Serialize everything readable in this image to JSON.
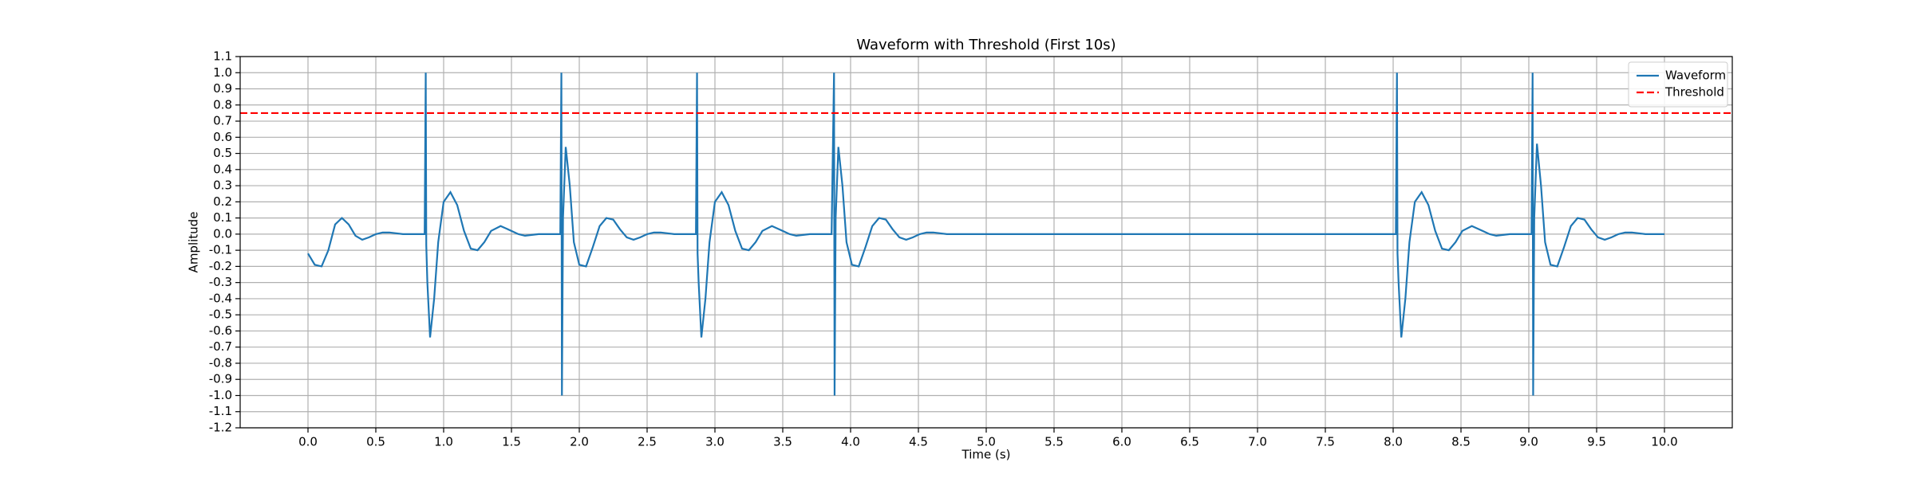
{
  "chart_data": {
    "type": "line",
    "title": "Waveform with Threshold (First 10s)",
    "x_label": "Time (s)",
    "y_label": "Amplitude",
    "xlim": [
      -0.5,
      10.5
    ],
    "ylim": [
      -1.2,
      1.1
    ],
    "grid": true,
    "legend": "upper right",
    "xticks": [
      {
        "value": 0,
        "label": "0.0"
      },
      0.5,
      {
        "value": 1,
        "label": "1.0"
      },
      1.5,
      {
        "value": 2,
        "label": "2.0"
      },
      2.5,
      {
        "value": 3,
        "label": "3.0"
      },
      3.5,
      {
        "value": 4,
        "label": "4.0"
      },
      4.5,
      {
        "value": 5,
        "label": "5.0"
      },
      5.5,
      {
        "value": 6,
        "label": "6.0"
      },
      6.5,
      {
        "value": 7,
        "label": "7.0"
      },
      7.5,
      {
        "value": 8,
        "label": "8.0"
      },
      8.5,
      {
        "value": 9,
        "label": "9.0"
      },
      9.5,
      {
        "value": 10,
        "label": "10.0"
      }
    ],
    "yticks": [
      -1.2,
      -1.1,
      {
        "value": -1,
        "label": "-1.0"
      },
      -0.9,
      -0.8,
      -0.7,
      -0.6,
      -0.5,
      -0.4,
      -0.3,
      -0.2,
      -0.1,
      {
        "value": 0,
        "label": "0.0"
      },
      0.1,
      0.2,
      0.3,
      0.4,
      0.5,
      0.6,
      0.7,
      0.8,
      0.9,
      {
        "value": 1,
        "label": "1.0"
      },
      1.1
    ],
    "x": [
      0,
      0.05,
      0.1,
      0.15,
      0.2,
      0.25,
      0.3,
      0.35,
      0.4,
      0.45,
      0.5,
      0.55,
      0.6,
      0.7,
      0.8,
      0.86,
      0.868,
      0.872,
      0.88,
      0.9,
      0.93,
      0.96,
      1.0,
      1.05,
      1.1,
      1.15,
      1.2,
      1.25,
      1.3,
      1.35,
      1.42,
      1.5,
      1.55,
      1.6,
      1.7,
      1.86,
      1.868,
      1.872,
      1.88,
      1.9,
      1.93,
      1.96,
      2.0,
      2.05,
      2.1,
      2.15,
      2.2,
      2.25,
      2.3,
      2.35,
      2.4,
      2.45,
      2.5,
      2.55,
      2.6,
      2.7,
      2.86,
      2.868,
      2.872,
      2.88,
      2.9,
      2.93,
      2.96,
      3.0,
      3.05,
      3.1,
      3.15,
      3.2,
      3.25,
      3.3,
      3.35,
      3.42,
      3.5,
      3.55,
      3.6,
      3.7,
      3.86,
      3.878,
      3.882,
      3.89,
      3.91,
      3.94,
      3.97,
      4.01,
      4.06,
      4.11,
      4.16,
      4.21,
      4.26,
      4.31,
      4.36,
      4.41,
      4.46,
      4.51,
      4.56,
      4.61,
      4.71,
      8.02,
      8.028,
      8.032,
      8.04,
      8.06,
      8.09,
      8.12,
      8.16,
      8.21,
      8.26,
      8.31,
      8.36,
      8.41,
      8.46,
      8.51,
      8.58,
      8.66,
      8.71,
      8.76,
      8.86,
      9.02,
      9.028,
      9.032,
      9.04,
      9.06,
      9.09,
      9.12,
      9.16,
      9.21,
      9.26,
      9.31,
      9.36,
      9.41,
      9.46,
      9.51,
      9.56,
      9.61,
      9.66,
      9.71,
      9.76,
      9.86,
      10.0
    ],
    "series": [
      {
        "name": "Waveform",
        "color": "#1f77b4",
        "values": [
          -0.12,
          -0.19,
          -0.2,
          -0.1,
          0.06,
          0.1,
          0.06,
          -0.01,
          -0.035,
          -0.02,
          0.0,
          0.01,
          0.01,
          0.0,
          0.0,
          0.0,
          1.0,
          -0.07,
          -0.3,
          -0.64,
          -0.4,
          -0.05,
          0.2,
          0.26,
          0.18,
          0.02,
          -0.09,
          -0.1,
          -0.05,
          0.02,
          0.05,
          0.02,
          0.0,
          -0.01,
          0.0,
          0.0,
          1.0,
          -1.0,
          0.1,
          0.54,
          0.3,
          -0.05,
          -0.19,
          -0.2,
          -0.08,
          0.05,
          0.1,
          0.09,
          0.03,
          -0.02,
          -0.035,
          -0.02,
          0.0,
          0.01,
          0.01,
          0.0,
          0.0,
          1.0,
          -0.12,
          -0.3,
          -0.64,
          -0.4,
          -0.05,
          0.2,
          0.26,
          0.18,
          0.02,
          -0.09,
          -0.1,
          -0.05,
          0.02,
          0.05,
          0.02,
          0.0,
          -0.01,
          0.0,
          0.0,
          1.0,
          -1.0,
          0.1,
          0.54,
          0.3,
          -0.05,
          -0.19,
          -0.2,
          -0.08,
          0.05,
          0.1,
          0.09,
          0.03,
          -0.02,
          -0.035,
          -0.02,
          0.0,
          0.01,
          0.01,
          0.0,
          0.0,
          1.0,
          -0.12,
          -0.3,
          -0.64,
          -0.4,
          -0.05,
          0.2,
          0.26,
          0.18,
          0.02,
          -0.09,
          -0.1,
          -0.05,
          0.02,
          0.05,
          0.02,
          0.0,
          -0.01,
          0.0,
          0.0,
          1.0,
          -1.0,
          0.1,
          0.56,
          0.3,
          -0.05,
          -0.19,
          -0.2,
          -0.08,
          0.05,
          0.1,
          0.09,
          0.03,
          -0.02,
          -0.035,
          -0.02,
          0.0,
          0.01,
          0.01,
          0.0,
          0.0
        ]
      }
    ],
    "threshold": {
      "name": "Threshold",
      "value": 0.75,
      "color": "#ff0000"
    }
  }
}
